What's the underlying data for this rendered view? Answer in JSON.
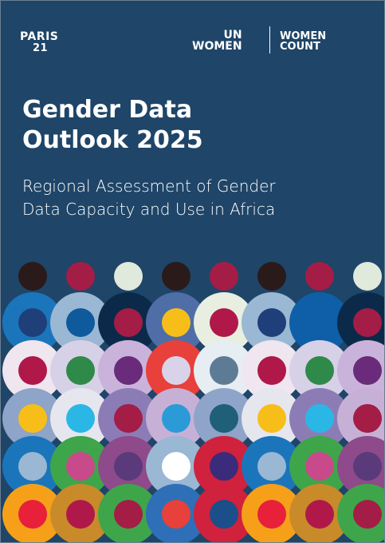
{
  "header": {
    "paris21": {
      "name": "PARIS",
      "number": "21"
    },
    "un_women": {
      "line1": "UN",
      "line2": "WOMEN"
    },
    "women_count": {
      "line1": "WOMEN",
      "line2": "COUNT"
    }
  },
  "title": {
    "lines": [
      "Gender Data",
      "Outlook 2025"
    ]
  },
  "subtitle": {
    "lines": [
      "Regional Assessment of Gender",
      "Data Capacity and Use in Africa"
    ]
  }
}
